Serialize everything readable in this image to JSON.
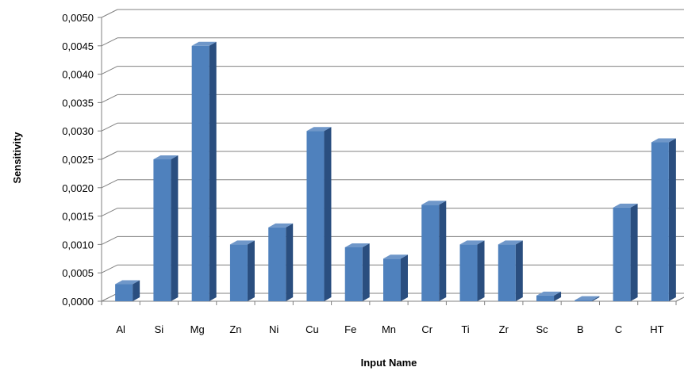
{
  "chart_data": {
    "type": "bar",
    "title": "",
    "xlabel": "Input Name",
    "ylabel": "Sensitivity",
    "categories": [
      "Al",
      "Si",
      "Mg",
      "Zn",
      "Ni",
      "Cu",
      "Fe",
      "Mn",
      "Cr",
      "Ti",
      "Zr",
      "Sc",
      "B",
      "C",
      "HT"
    ],
    "values": [
      0.0003,
      0.0025,
      0.0045,
      0.001,
      0.0013,
      0.003,
      0.00095,
      0.00075,
      0.0017,
      0.001,
      0.001,
      0.0001,
      2e-05,
      0.00165,
      0.0028
    ],
    "ylim": [
      0,
      0.005
    ],
    "yticks": [
      "0,0000",
      "0,0005",
      "0,0010",
      "0,0015",
      "0,0020",
      "0,0025",
      "0,0030",
      "0,0035",
      "0,0040",
      "0,0045",
      "0,0050"
    ],
    "grid": true,
    "bar_color": "#4f81bd",
    "legend": "none"
  }
}
